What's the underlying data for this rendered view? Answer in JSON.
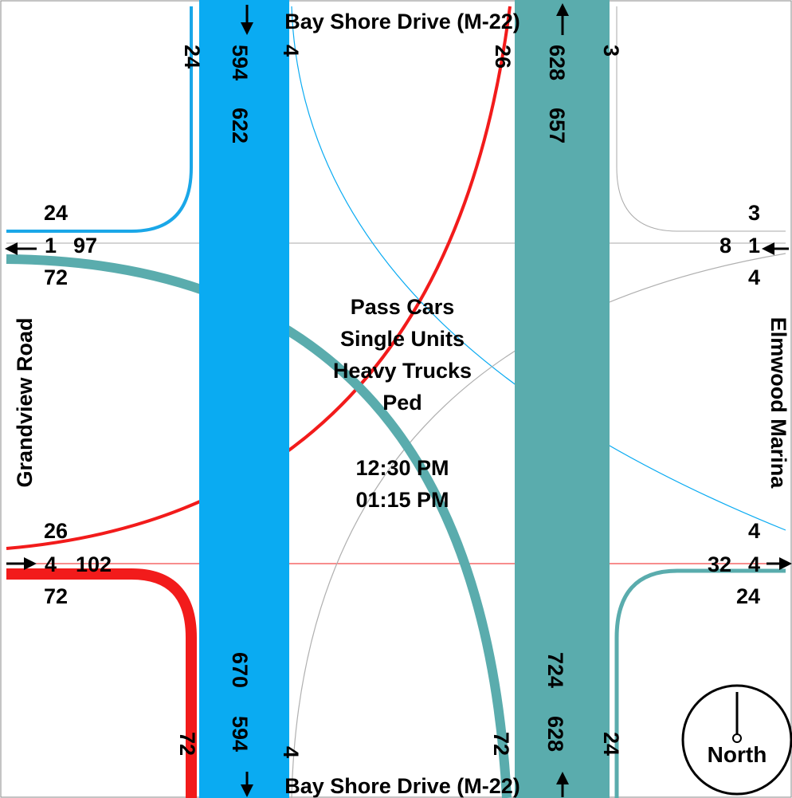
{
  "streets": {
    "north": "Bay Shore Drive (M-22)",
    "south": "Bay Shore Drive (M-22)",
    "west": "Grandview Road",
    "east": "Elmwood Marina"
  },
  "center": {
    "lines": [
      "Pass Cars",
      "Single Units",
      "Heavy Trucks",
      "Ped"
    ],
    "time_start": "12:30 PM",
    "time_end": "01:15 PM"
  },
  "north_approach": {
    "right": "24",
    "thru": "594",
    "total_in": "622",
    "left": "4",
    "right_out": "26",
    "total_out": "628",
    "total_out2": "657",
    "left_out": "3"
  },
  "south_approach": {
    "left": "72",
    "thru": "594",
    "total": "670",
    "right": "4",
    "left2": "72",
    "thru2": "628",
    "total2": "724",
    "right2": "24"
  },
  "west_approach": {
    "top": "24",
    "left_mid": "1",
    "total_out": "97",
    "bottom": "72",
    "in_top": "26",
    "in_mid": "4",
    "total_in": "102",
    "in_bottom": "72"
  },
  "east_approach": {
    "top": "3",
    "total_in": "8",
    "mid": "1",
    "bottom": "4",
    "out_top": "4",
    "total_out": "32",
    "out_mid": "4",
    "out_bottom": "24"
  },
  "compass": {
    "label": "North"
  },
  "colors": {
    "southbound": "#0aabf2",
    "northbound": "#5aacad",
    "west_in": "#f21b1b",
    "east_lines": "#b0b0b0"
  }
}
